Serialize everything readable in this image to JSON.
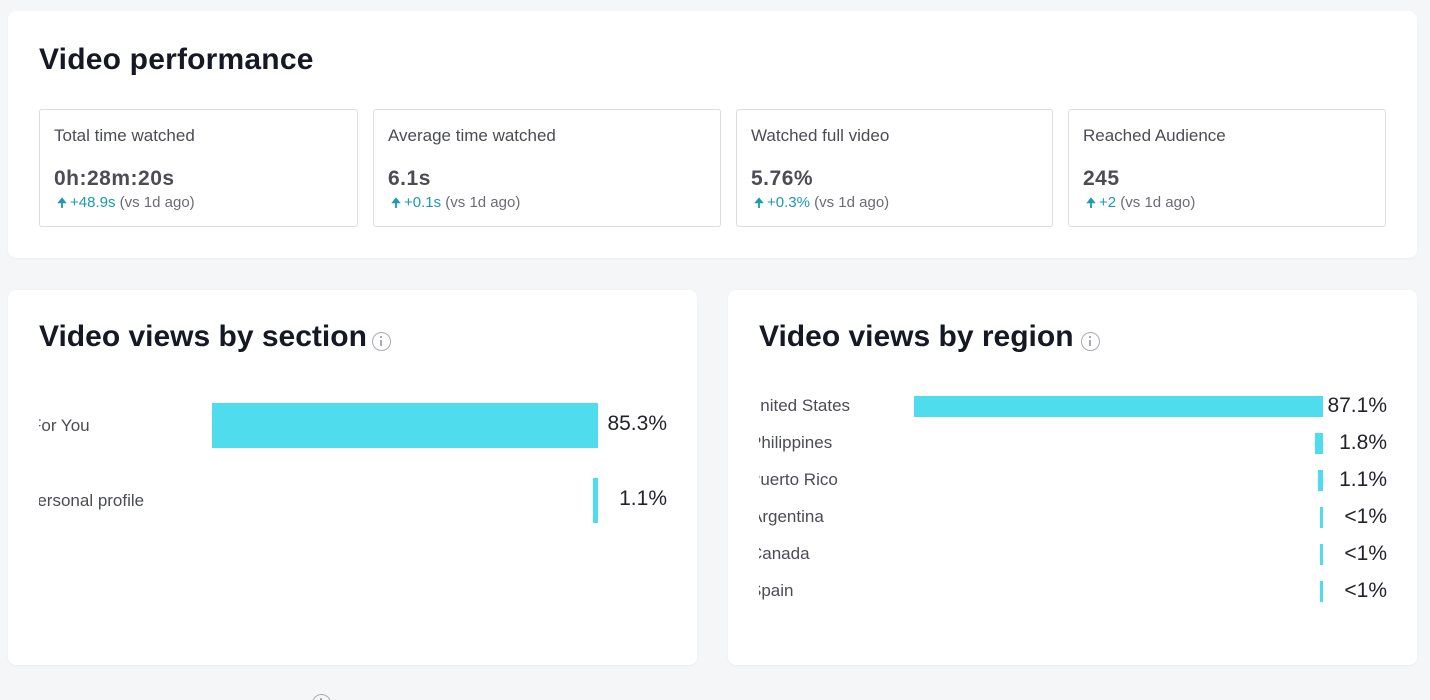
{
  "performance": {
    "title": "Video performance",
    "metrics": [
      {
        "label": "Total time watched",
        "value": "0h:28m:20s",
        "delta": "+48.9s",
        "compare": "(vs 1d ago)"
      },
      {
        "label": "Average time watched",
        "value": "6.1s",
        "delta": "+0.1s",
        "compare": "(vs 1d ago)"
      },
      {
        "label": "Watched full video",
        "value": "5.76%",
        "delta": "+0.3%",
        "compare": "(vs 1d ago)"
      },
      {
        "label": "Reached Audience",
        "value": "245",
        "delta": "+2",
        "compare": "(vs 1d ago)"
      }
    ]
  },
  "sections": {
    "title": "Video views by section",
    "rows": [
      {
        "label": "For You",
        "pct_label": "85.3%",
        "value": 85.3
      },
      {
        "label": "Personal profile",
        "pct_label": "1.1%",
        "value": 1.1
      }
    ]
  },
  "regions": {
    "title": "Video views by region",
    "rows": [
      {
        "label": "United States",
        "pct_label": "87.1%",
        "value": 87.1
      },
      {
        "label": "Philippines",
        "pct_label": "1.8%",
        "value": 1.8
      },
      {
        "label": "Puerto Rico",
        "pct_label": "1.1%",
        "value": 1.1
      },
      {
        "label": "Argentina",
        "pct_label": "<1%",
        "value": 0.5
      },
      {
        "label": "Canada",
        "pct_label": "<1%",
        "value": 0.5
      },
      {
        "label": "Spain",
        "pct_label": "<1%",
        "value": 0.5
      }
    ]
  },
  "colors": {
    "bar": "#4fdcec",
    "delta": "#1a9bb0"
  },
  "icons": {
    "delta": "arrow-up-icon",
    "info": "info-icon"
  }
}
